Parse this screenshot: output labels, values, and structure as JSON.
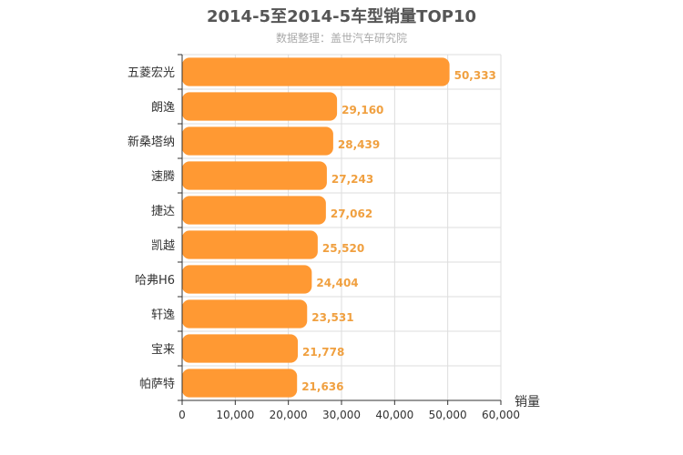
{
  "chart_data": {
    "type": "bar",
    "orientation": "horizontal",
    "title": "2014-5至2014-5车型销量TOP10",
    "subtitle": "数据整理：盖世汽车研究院",
    "xlabel": "销量",
    "ylabel": "",
    "xlim": [
      0,
      60000
    ],
    "ticks": [
      0,
      10000,
      20000,
      30000,
      40000,
      50000,
      60000
    ],
    "tick_labels": [
      "0",
      "10,000",
      "20,000",
      "30,000",
      "40,000",
      "50,000",
      "60,000"
    ],
    "categories": [
      "五菱宏光",
      "朗逸",
      "新桑塔纳",
      "速腾",
      "捷达",
      "凯越",
      "哈弗H6",
      "轩逸",
      "宝来",
      "帕萨特"
    ],
    "values": [
      50333,
      29160,
      28439,
      27243,
      27062,
      25520,
      24404,
      23531,
      21778,
      21636
    ],
    "value_labels": [
      "50,333",
      "29,160",
      "28,439",
      "27,243",
      "27,062",
      "25,520",
      "24,404",
      "23,531",
      "21,778",
      "21,636"
    ],
    "grid": true,
    "legend": "none",
    "colors": {
      "bar": "#ff9933",
      "label": "#f0a040",
      "grid": "#dddddd",
      "axis": "#333333"
    }
  }
}
